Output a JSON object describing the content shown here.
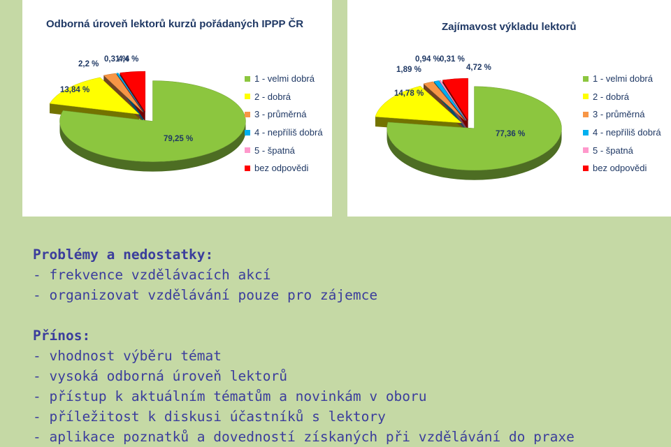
{
  "chart_data": [
    {
      "type": "pie",
      "title": "Odborná úroveň lektorů kurzů pořádaných IPPP ČR",
      "categories": [
        "1 - velmi dobrá",
        "2 - dobrá",
        "3 - průměrná",
        "4 - nepříliš dobrá",
        "5 - špatná",
        "bez odpovědi"
      ],
      "values": [
        79.25,
        13.84,
        2.2,
        0.31,
        0,
        4.4
      ],
      "value_labels": [
        "79,25 %",
        "13,84 %",
        "2,2 %",
        "0,31 %",
        "",
        "4,4 %"
      ],
      "colors": [
        "#8cc63f",
        "#ffff00",
        "#f79646",
        "#00b0f0",
        "#ff99cc",
        "#ff0000"
      ],
      "legend_position": "right"
    },
    {
      "type": "pie",
      "title": "Zajímavost výkladu lektorů",
      "categories": [
        "1 - velmi dobrá",
        "2 - dobrá",
        "3 - průměrná",
        "4 - nepříliš dobrá",
        "5 - špatná",
        "bez odpovědi"
      ],
      "values": [
        77.36,
        14.78,
        1.89,
        0.94,
        0.31,
        4.72
      ],
      "value_labels": [
        "77,36 %",
        "14,78 %",
        "1,89 %",
        "0,94 %",
        "0,31 %",
        "4,72 %"
      ],
      "colors": [
        "#8cc63f",
        "#ffff00",
        "#f79646",
        "#00b0f0",
        "#ff99cc",
        "#ff0000"
      ],
      "legend_position": "right"
    }
  ],
  "notes": {
    "problems_heading": "Problémy a nedostatky:",
    "problems": [
      "- frekvence vzdělávacích akcí",
      "- organizovat vzdělávání pouze pro zájemce"
    ],
    "benefits_heading": "Přínos:",
    "benefits": [
      "- vhodnost výběru témat",
      "- vysoká odborná úroveň lektorů",
      "- přístup k aktuálním tématům a novinkám v oboru",
      "- příležitost k diskusi účastníků s lektory",
      "- aplikace poznatků a dovedností získaných při vzdělávání do praxe"
    ]
  }
}
